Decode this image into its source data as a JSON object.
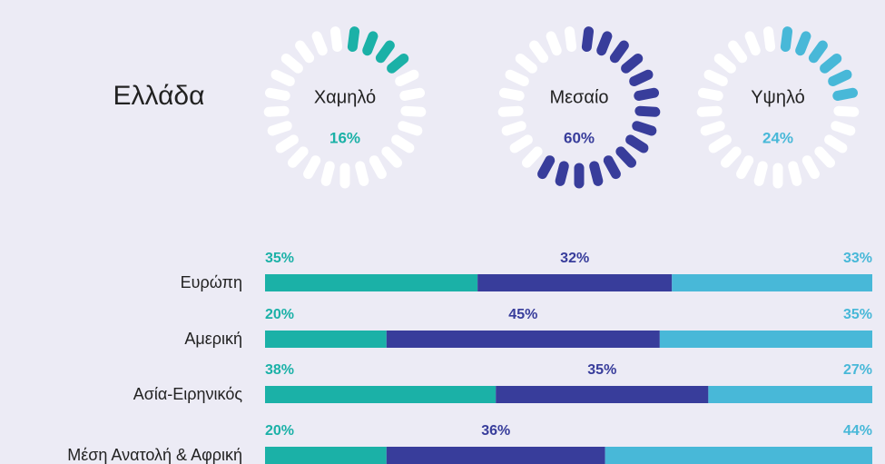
{
  "chart_data": [
    {
      "type": "gauge",
      "title": "Ελλάδα",
      "categories": [
        "Χαμηλό",
        "Μεσαίο",
        "Υψηλό"
      ],
      "values": [
        16,
        60,
        24
      ],
      "value_labels": [
        "16%",
        "60%",
        "24%"
      ],
      "colors": [
        "#1bb1a7",
        "#383d9b",
        "#48b8d8"
      ],
      "ylim": [
        0,
        100
      ]
    },
    {
      "type": "bar",
      "orientation": "horizontal",
      "stacked": true,
      "categories": [
        "Ευρώπη",
        "Αμερική",
        "Ασία-Ειρηνικός",
        "Μέση Ανατολή & Αφρική"
      ],
      "xlim": [
        0,
        100
      ],
      "series": [
        {
          "color": "#1bb1a7",
          "values": [
            35,
            20,
            38,
            20
          ],
          "value_labels": [
            "35%",
            "20%",
            "38%",
            "20%"
          ]
        },
        {
          "color": "#383d9b",
          "values": [
            32,
            45,
            35,
            36
          ],
          "value_labels": [
            "32%",
            "45%",
            "35%",
            "36%"
          ]
        },
        {
          "color": "#48b8d8",
          "values": [
            33,
            35,
            27,
            44
          ],
          "value_labels": [
            "33%",
            "35%",
            "27%",
            "44%"
          ]
        }
      ]
    }
  ]
}
